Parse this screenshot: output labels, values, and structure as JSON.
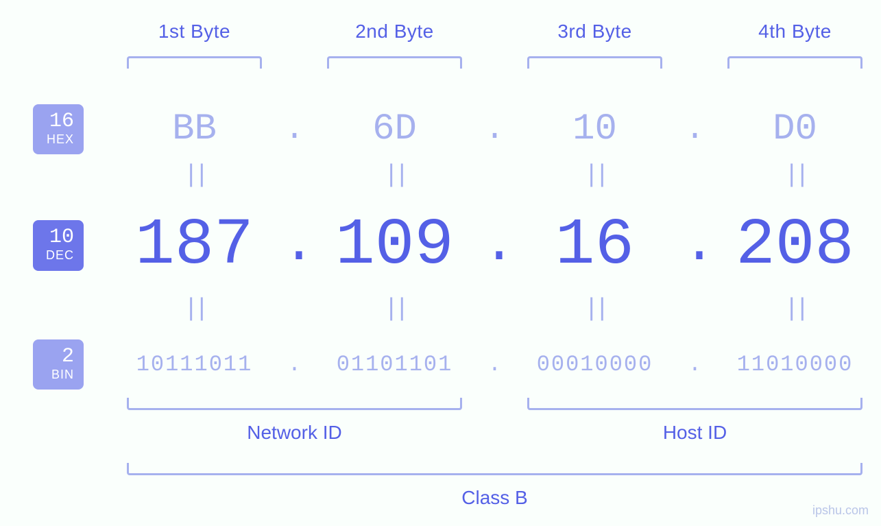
{
  "colors": {
    "text_primary": "#5460e6",
    "text_light": "#a6b1ee",
    "bracket": "#a6b1ee",
    "badge_active_bg": "#6d76ea",
    "badge_inactive_bg": "#9aa3f0",
    "badge_text": "#ffffff",
    "background": "#fafffc"
  },
  "byte_headers": [
    "1st Byte",
    "2nd Byte",
    "3rd Byte",
    "4th Byte"
  ],
  "radix_badges": {
    "hex": {
      "base": "16",
      "label": "HEX",
      "active": false
    },
    "dec": {
      "base": "10",
      "label": "DEC",
      "active": true
    },
    "bin": {
      "base": "2",
      "label": "BIN",
      "active": false
    }
  },
  "bytes": {
    "hex": [
      "BB",
      "6D",
      "10",
      "D0"
    ],
    "dec": [
      "187",
      "109",
      "16",
      "208"
    ],
    "bin": [
      "10111011",
      "01101101",
      "00010000",
      "11010000"
    ]
  },
  "separators": {
    "dot": ".",
    "equals": "||"
  },
  "id_labels": {
    "network": "Network ID",
    "host": "Host ID"
  },
  "class_label": "Class B",
  "watermark": "ipshu.com",
  "styling": {
    "byte_label_fontsize": 28,
    "hex_fontsize": 54,
    "dec_fontsize": 96,
    "bin_fontsize": 32,
    "bracket_stroke_width": 3
  }
}
